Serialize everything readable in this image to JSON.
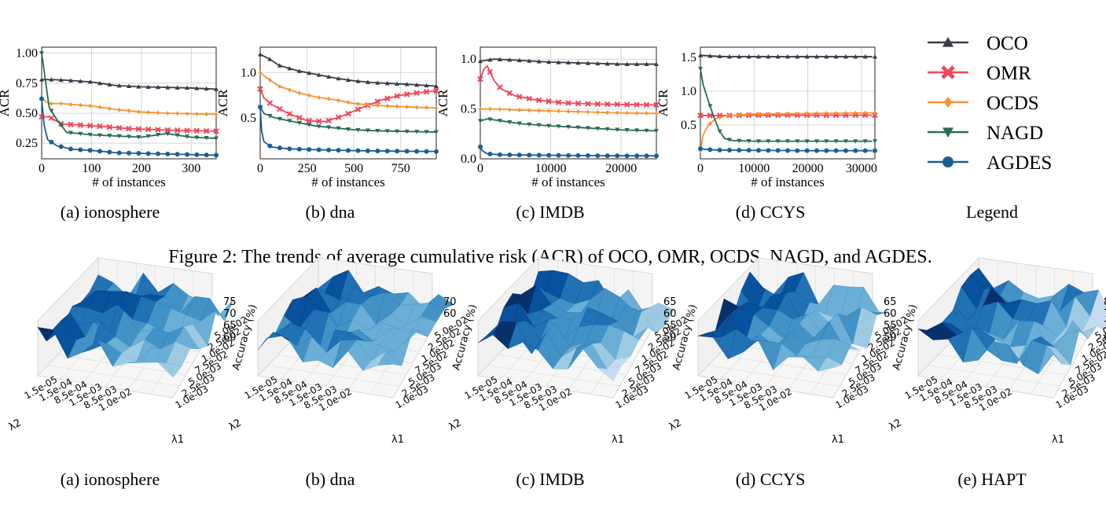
{
  "figure2": {
    "caption": "Figure 2: The trends of average cumulative risk (ACR) of OCO, OMR, OCDS, NAGD, and AGDES.",
    "legend_caption": "Legend",
    "legend": [
      {
        "name": "OCO",
        "color": "#3a3a4a",
        "marker": "triangle-up"
      },
      {
        "name": "OMR",
        "color": "#f0465c",
        "marker": "x"
      },
      {
        "name": "OCDS",
        "color": "#f7922e",
        "marker": "diamond"
      },
      {
        "name": "NAGD",
        "color": "#286b55",
        "marker": "triangle-down"
      },
      {
        "name": "AGDES",
        "color": "#1a5f96",
        "marker": "circle"
      }
    ]
  },
  "figure3": {
    "panels": [
      {
        "caption": "(a) ionosphere",
        "xlabel": "λ1",
        "ylabel": "λ2",
        "zlabel": "Accuracy (%)",
        "zticks": [
          "75",
          "70",
          "65",
          "60"
        ],
        "xticks": [
          "1.0e-03",
          "2.5e-03",
          "5.0e-03",
          "7.5e-02",
          "1.0e-02",
          "2.5e-02",
          "5.0e-02"
        ],
        "yticks": [
          "1.5e-05",
          "1.5e-04",
          "8.5e-04",
          "1.5e-03",
          "8.5e-03",
          "1.0e-02"
        ]
      },
      {
        "caption": "(b) dna",
        "xlabel": "λ1",
        "ylabel": "λ2",
        "zlabel": "Accuracy (%)",
        "zticks": [
          "70",
          "60"
        ],
        "xticks": [
          "1.0e-03",
          "2.5e-03",
          "5.0e-03",
          "7.5e-02",
          "1.0e-02",
          "2.5e-02",
          "5.0e-02"
        ],
        "yticks": [
          "1.5e-05",
          "1.5e-04",
          "8.5e-04",
          "1.5e-03",
          "8.5e-03",
          "1.0e-02"
        ]
      },
      {
        "caption": "(c) IMDB",
        "xlabel": "λ1",
        "ylabel": "λ2",
        "zlabel": "Accuracy (%)",
        "zticks": [
          "65",
          "60",
          "55",
          "50"
        ],
        "xticks": [
          "1.0e-03",
          "2.5e-03",
          "5.0e-03",
          "7.5e-02",
          "1.0e-02",
          "2.5e-02",
          "5.0e-02"
        ],
        "yticks": [
          "1.5e-05",
          "1.5e-04",
          "8.5e-04",
          "1.5e-03",
          "8.5e-03",
          "1.0e-02"
        ]
      },
      {
        "caption": "(d) CCYS",
        "xlabel": "λ1",
        "ylabel": "λ2",
        "zlabel": "Accuracy (%)",
        "zticks": [
          "65",
          "60",
          "55",
          "50"
        ],
        "xticks": [
          "1.0e-03",
          "2.5e-03",
          "5.0e-03",
          "7.5e-02",
          "1.0e-02",
          "2.5e-02",
          "5.0e-02"
        ],
        "yticks": [
          "1.5e-05",
          "1.5e-04",
          "8.5e-04",
          "1.5e-03",
          "8.5e-03",
          "1.0e-02"
        ]
      },
      {
        "caption": "(e) HAPT",
        "xlabel": "λ1",
        "ylabel": "λ2",
        "zlabel": "Accuracy (%)",
        "zticks": [
          "80",
          "75",
          "70",
          "65"
        ],
        "xticks": [
          "1.0e-03",
          "2.5e-03",
          "5.0e-03",
          "7.5e-02",
          "1.0e-02",
          "2.5e-02",
          "5.0e-02"
        ],
        "yticks": [
          "1.5e-05",
          "1.5e-04",
          "8.5e-04",
          "1.5e-03",
          "8.5e-03",
          "1.0e-02"
        ]
      }
    ]
  },
  "chart_data": [
    {
      "type": "line",
      "caption": "(a) ionosphere",
      "xlabel": "# of instances",
      "ylabel": "ACR",
      "xlim": [
        0,
        350
      ],
      "ylim": [
        0.12,
        1.05
      ],
      "xticks": [
        0,
        100,
        200,
        300
      ],
      "yticks": [
        0.25,
        0.5,
        0.75,
        1.0
      ],
      "ytick_labels": [
        "0.25",
        "0.50",
        "0.75",
        "1.00"
      ],
      "grid": true,
      "series": [
        {
          "name": "OCO",
          "points": [
            [
              0,
              0.78
            ],
            [
              20,
              0.78
            ],
            [
              50,
              0.775
            ],
            [
              100,
              0.76
            ],
            [
              150,
              0.73
            ],
            [
              200,
              0.72
            ],
            [
              250,
              0.715
            ],
            [
              300,
              0.71
            ],
            [
              350,
              0.7
            ]
          ]
        },
        {
          "name": "OMR",
          "points": [
            [
              0,
              0.47
            ],
            [
              15,
              0.47
            ],
            [
              40,
              0.41
            ],
            [
              80,
              0.4
            ],
            [
              120,
              0.39
            ],
            [
              180,
              0.37
            ],
            [
              250,
              0.36
            ],
            [
              300,
              0.355
            ],
            [
              350,
              0.35
            ]
          ]
        },
        {
          "name": "OCDS",
          "points": [
            [
              0,
              0.62
            ],
            [
              15,
              0.58
            ],
            [
              40,
              0.58
            ],
            [
              100,
              0.56
            ],
            [
              150,
              0.53
            ],
            [
              200,
              0.51
            ],
            [
              250,
              0.5
            ],
            [
              300,
              0.495
            ],
            [
              350,
              0.49
            ]
          ]
        },
        {
          "name": "NAGD",
          "points": [
            [
              0,
              1.0
            ],
            [
              5,
              0.85
            ],
            [
              15,
              0.55
            ],
            [
              30,
              0.45
            ],
            [
              50,
              0.34
            ],
            [
              100,
              0.32
            ],
            [
              150,
              0.31
            ],
            [
              200,
              0.3
            ],
            [
              250,
              0.33
            ],
            [
              300,
              0.3
            ],
            [
              350,
              0.29
            ]
          ]
        },
        {
          "name": "AGDES",
          "points": [
            [
              0,
              0.62
            ],
            [
              5,
              0.4
            ],
            [
              12,
              0.28
            ],
            [
              30,
              0.23
            ],
            [
              60,
              0.2
            ],
            [
              100,
              0.19
            ],
            [
              150,
              0.17
            ],
            [
              200,
              0.165
            ],
            [
              250,
              0.16
            ],
            [
              300,
              0.155
            ],
            [
              350,
              0.15
            ]
          ]
        }
      ]
    },
    {
      "type": "line",
      "caption": "(b) dna",
      "xlabel": "# of instances",
      "ylabel": "ACR",
      "xlim": [
        0,
        940
      ],
      "ylim": [
        0.05,
        1.28
      ],
      "xticks": [
        0,
        250,
        500,
        750
      ],
      "yticks": [
        0.5,
        1.0
      ],
      "ytick_labels": [
        "0.5",
        "1.0"
      ],
      "grid": true,
      "series": [
        {
          "name": "OCO",
          "points": [
            [
              0,
              1.2
            ],
            [
              50,
              1.15
            ],
            [
              100,
              1.08
            ],
            [
              200,
              1.02
            ],
            [
              300,
              0.98
            ],
            [
              400,
              0.94
            ],
            [
              500,
              0.91
            ],
            [
              600,
              0.89
            ],
            [
              700,
              0.88
            ],
            [
              800,
              0.87
            ],
            [
              940,
              0.85
            ]
          ]
        },
        {
          "name": "OMR",
          "points": [
            [
              0,
              0.82
            ],
            [
              20,
              0.72
            ],
            [
              60,
              0.65
            ],
            [
              150,
              0.55
            ],
            [
              250,
              0.47
            ],
            [
              350,
              0.46
            ],
            [
              450,
              0.53
            ],
            [
              550,
              0.62
            ],
            [
              650,
              0.7
            ],
            [
              750,
              0.75
            ],
            [
              850,
              0.78
            ],
            [
              940,
              0.8
            ]
          ]
        },
        {
          "name": "OCDS",
          "points": [
            [
              0,
              1.0
            ],
            [
              30,
              0.95
            ],
            [
              100,
              0.85
            ],
            [
              200,
              0.78
            ],
            [
              300,
              0.73
            ],
            [
              400,
              0.7
            ],
            [
              500,
              0.66
            ],
            [
              600,
              0.64
            ],
            [
              700,
              0.63
            ],
            [
              800,
              0.62
            ],
            [
              940,
              0.61
            ]
          ]
        },
        {
          "name": "NAGD",
          "points": [
            [
              0,
              0.62
            ],
            [
              20,
              0.55
            ],
            [
              80,
              0.5
            ],
            [
              200,
              0.45
            ],
            [
              300,
              0.41
            ],
            [
              400,
              0.39
            ],
            [
              500,
              0.37
            ],
            [
              600,
              0.36
            ],
            [
              700,
              0.355
            ],
            [
              800,
              0.35
            ],
            [
              940,
              0.345
            ]
          ]
        },
        {
          "name": "AGDES",
          "points": [
            [
              0,
              0.62
            ],
            [
              8,
              0.35
            ],
            [
              20,
              0.24
            ],
            [
              60,
              0.18
            ],
            [
              150,
              0.16
            ],
            [
              300,
              0.15
            ],
            [
              500,
              0.14
            ],
            [
              700,
              0.135
            ],
            [
              940,
              0.13
            ]
          ]
        }
      ]
    },
    {
      "type": "line",
      "caption": "(c) IMDB",
      "xlabel": "# of instances",
      "ylabel": "ACR",
      "xlim": [
        0,
        25000
      ],
      "ylim": [
        0,
        1.12
      ],
      "xticks": [
        0,
        10000,
        20000
      ],
      "yticks": [
        0.0,
        0.5,
        1.0
      ],
      "ytick_labels": [
        "0.0",
        "0.5",
        "1.0"
      ],
      "grid": true,
      "series": [
        {
          "name": "OCO",
          "points": [
            [
              0,
              0.98
            ],
            [
              2000,
              1.0
            ],
            [
              5000,
              0.99
            ],
            [
              10000,
              0.97
            ],
            [
              15000,
              0.96
            ],
            [
              20000,
              0.95
            ],
            [
              25000,
              0.95
            ]
          ]
        },
        {
          "name": "OMR",
          "points": [
            [
              0,
              0.8
            ],
            [
              500,
              0.9
            ],
            [
              1000,
              0.93
            ],
            [
              2000,
              0.78
            ],
            [
              3000,
              0.7
            ],
            [
              5000,
              0.63
            ],
            [
              8000,
              0.59
            ],
            [
              12000,
              0.56
            ],
            [
              16000,
              0.55
            ],
            [
              20000,
              0.545
            ],
            [
              25000,
              0.54
            ]
          ]
        },
        {
          "name": "OCDS",
          "points": [
            [
              0,
              0.5
            ],
            [
              2000,
              0.5
            ],
            [
              5000,
              0.49
            ],
            [
              10000,
              0.48
            ],
            [
              15000,
              0.47
            ],
            [
              20000,
              0.46
            ],
            [
              25000,
              0.455
            ]
          ]
        },
        {
          "name": "NAGD",
          "points": [
            [
              0,
              0.38
            ],
            [
              1000,
              0.4
            ],
            [
              3000,
              0.38
            ],
            [
              6000,
              0.35
            ],
            [
              10000,
              0.33
            ],
            [
              15000,
              0.31
            ],
            [
              20000,
              0.29
            ],
            [
              25000,
              0.28
            ]
          ]
        },
        {
          "name": "AGDES",
          "points": [
            [
              0,
              0.12
            ],
            [
              300,
              0.08
            ],
            [
              1000,
              0.05
            ],
            [
              3000,
              0.04
            ],
            [
              10000,
              0.035
            ],
            [
              20000,
              0.03
            ],
            [
              25000,
              0.03
            ]
          ]
        }
      ]
    },
    {
      "type": "line",
      "caption": "(d) CCYS",
      "xlabel": "# of instances",
      "ylabel": "ACR",
      "xlim": [
        0,
        32500
      ],
      "ylim": [
        0,
        1.65
      ],
      "xticks": [
        0,
        10000,
        20000,
        30000
      ],
      "yticks": [
        0.5,
        1.0,
        1.5
      ],
      "ytick_labels": [
        "0.5",
        "1.0",
        "1.5"
      ],
      "grid": true,
      "series": [
        {
          "name": "OCO",
          "points": [
            [
              0,
              1.53
            ],
            [
              2000,
              1.52
            ],
            [
              5000,
              1.51
            ],
            [
              10000,
              1.51
            ],
            [
              20000,
              1.51
            ],
            [
              32000,
              1.51
            ]
          ]
        },
        {
          "name": "OMR",
          "points": [
            [
              0,
              0.64
            ],
            [
              2000,
              0.64
            ],
            [
              5000,
              0.64
            ],
            [
              10000,
              0.645
            ],
            [
              20000,
              0.645
            ],
            [
              32000,
              0.645
            ]
          ]
        },
        {
          "name": "OCDS",
          "points": [
            [
              0,
              0.12
            ],
            [
              500,
              0.35
            ],
            [
              1500,
              0.5
            ],
            [
              3000,
              0.6
            ],
            [
              5000,
              0.64
            ],
            [
              10000,
              0.66
            ],
            [
              20000,
              0.67
            ],
            [
              32000,
              0.68
            ]
          ]
        },
        {
          "name": "NAGD",
          "points": [
            [
              0,
              1.33
            ],
            [
              500,
              1.1
            ],
            [
              1500,
              0.85
            ],
            [
              2500,
              0.62
            ],
            [
              3500,
              0.42
            ],
            [
              4500,
              0.3
            ],
            [
              6000,
              0.27
            ],
            [
              10000,
              0.26
            ],
            [
              20000,
              0.26
            ],
            [
              32000,
              0.26
            ]
          ]
        },
        {
          "name": "AGDES",
          "points": [
            [
              0,
              0.15
            ],
            [
              800,
              0.14
            ],
            [
              3000,
              0.13
            ],
            [
              10000,
              0.125
            ],
            [
              20000,
              0.12
            ],
            [
              32000,
              0.12
            ]
          ]
        }
      ]
    }
  ]
}
